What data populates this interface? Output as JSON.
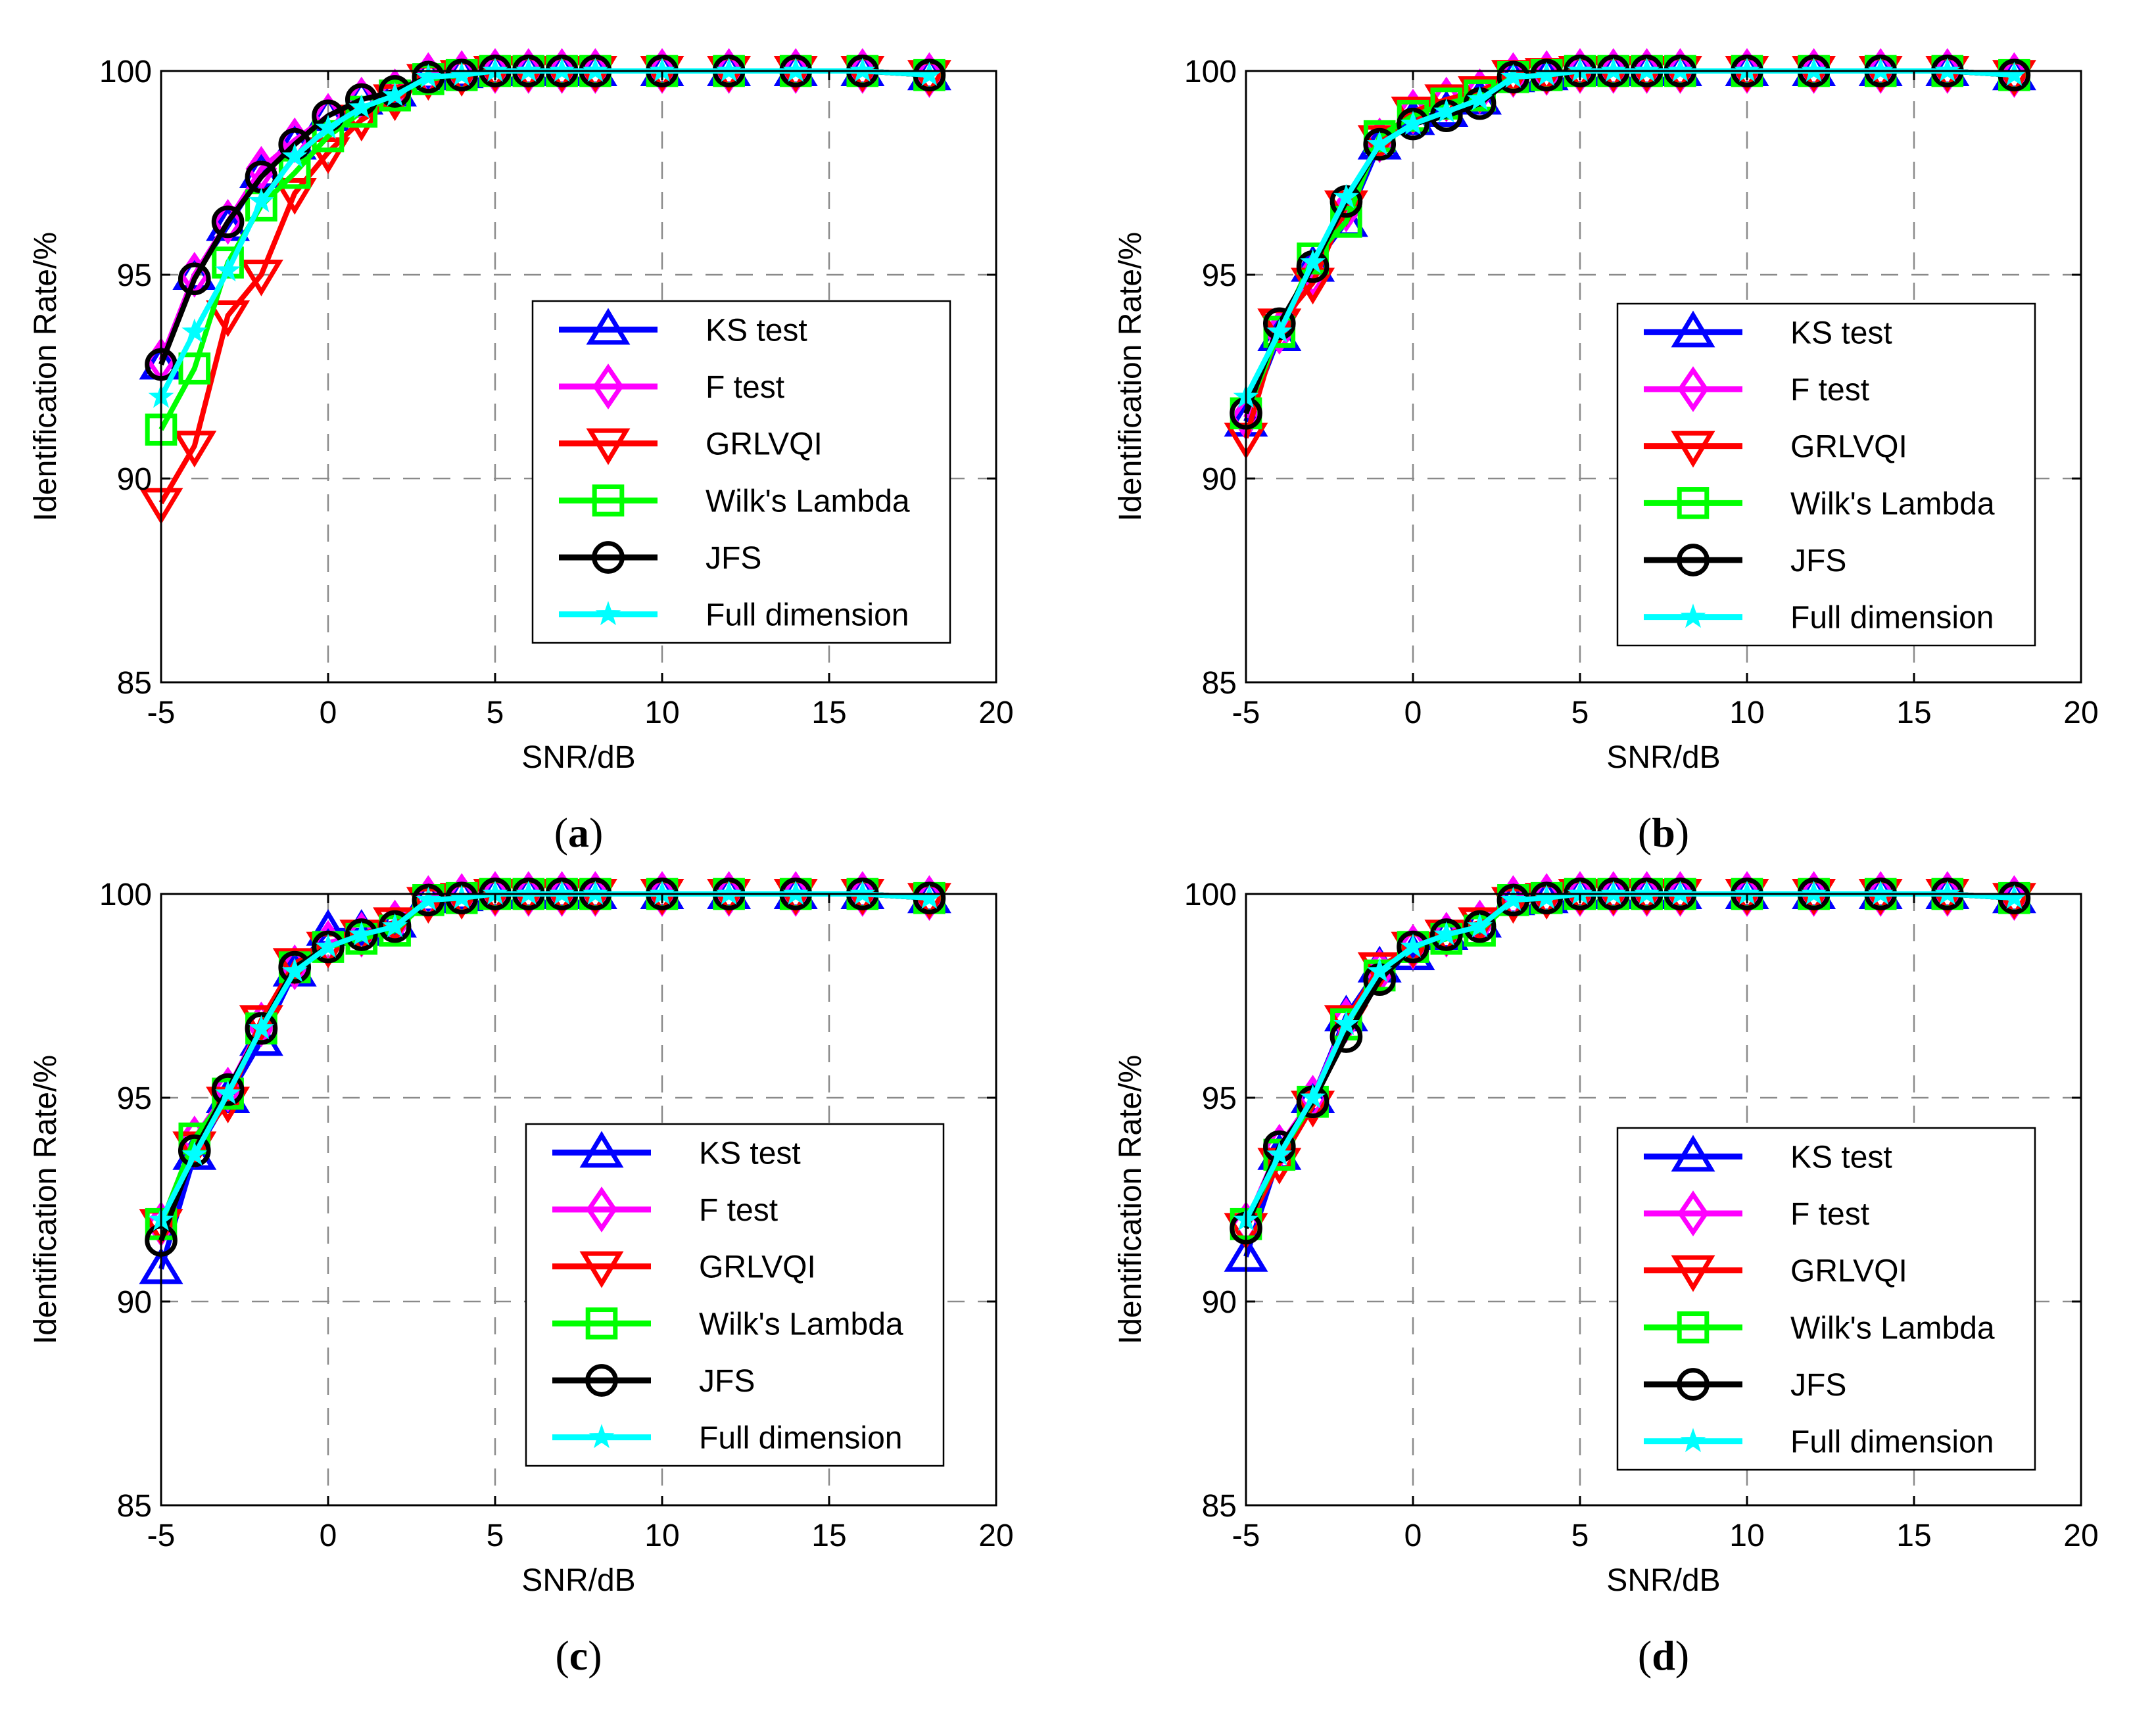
{
  "chart_data": [
    {
      "type": "line",
      "caption": "a",
      "xlabel": "SNR/dB",
      "ylabel": "Identification Rate/%",
      "xlim": [
        -5,
        20
      ],
      "ylim": [
        85,
        100
      ],
      "xticks": [
        "-5",
        "0",
        "5",
        "10",
        "15",
        "20"
      ],
      "yticks": [
        "85",
        "90",
        "95",
        "100"
      ],
      "grid": true,
      "legend_position": "lower-right",
      "x": [
        -5,
        -4,
        -3,
        -2,
        -1,
        0,
        1,
        2,
        3,
        4,
        5,
        6,
        7,
        8,
        10,
        12,
        14,
        16,
        18
      ],
      "series": [
        {
          "name": "KS test",
          "color": "#0000ff",
          "marker": "triangle-up",
          "values": [
            92.8,
            95.0,
            96.2,
            97.5,
            98.2,
            98.9,
            99.3,
            99.5,
            99.9,
            99.95,
            100,
            100,
            100,
            100,
            100,
            100,
            100,
            100,
            99.9
          ]
        },
        {
          "name": "F test",
          "color": "#ff00ff",
          "marker": "diamond",
          "values": [
            92.9,
            95.0,
            96.3,
            97.6,
            98.3,
            98.9,
            99.3,
            99.5,
            99.9,
            99.95,
            100,
            100,
            100,
            100,
            100,
            100,
            100,
            100,
            99.9
          ]
        },
        {
          "name": "GRLVQI",
          "color": "#ff0000",
          "marker": "triangle-down",
          "values": [
            89.4,
            90.8,
            94.0,
            95.0,
            97.0,
            98.0,
            98.8,
            99.3,
            99.8,
            99.9,
            100,
            100,
            100,
            100,
            100,
            100,
            100,
            100,
            99.9
          ]
        },
        {
          "name": "Wilk's Lambda",
          "color": "#00ff00",
          "marker": "square",
          "values": [
            91.2,
            92.7,
            95.3,
            96.7,
            97.5,
            98.4,
            99.0,
            99.4,
            99.8,
            99.9,
            100,
            100,
            100,
            100,
            100,
            100,
            100,
            100,
            99.9
          ]
        },
        {
          "name": "JFS",
          "color": "#000000",
          "marker": "circle",
          "values": [
            92.8,
            94.9,
            96.3,
            97.4,
            98.2,
            98.9,
            99.3,
            99.5,
            99.85,
            99.9,
            100,
            100,
            100,
            100,
            100,
            100,
            100,
            100,
            99.9
          ]
        },
        {
          "name": "Full dimension",
          "color": "#00ffff",
          "marker": "star",
          "values": [
            92.0,
            93.6,
            95.1,
            96.8,
            97.9,
            98.6,
            99.1,
            99.4,
            99.85,
            99.9,
            100,
            100,
            100,
            100,
            100,
            100,
            100,
            100,
            99.9
          ]
        }
      ]
    },
    {
      "type": "line",
      "caption": "b",
      "xlabel": "SNR/dB",
      "ylabel": "Identification Rate/%",
      "xlim": [
        -5,
        20
      ],
      "ylim": [
        85,
        100
      ],
      "xticks": [
        "-5",
        "0",
        "5",
        "10",
        "15",
        "20"
      ],
      "yticks": [
        "85",
        "90",
        "95",
        "100"
      ],
      "grid": true,
      "legend_position": "lower-right",
      "x": [
        -5,
        -4,
        -3,
        -2,
        -1,
        0,
        1,
        2,
        3,
        4,
        5,
        6,
        7,
        8,
        10,
        12,
        14,
        16,
        18
      ],
      "series": [
        {
          "name": "KS test",
          "color": "#0000ff",
          "marker": "triangle-up",
          "values": [
            91.4,
            93.5,
            95.2,
            96.3,
            98.2,
            98.8,
            99.0,
            99.3,
            99.85,
            99.9,
            100,
            100,
            100,
            100,
            100,
            100,
            100,
            100,
            99.9
          ]
        },
        {
          "name": "F test",
          "color": "#ff00ff",
          "marker": "diamond",
          "values": [
            91.5,
            93.6,
            95.0,
            96.6,
            98.3,
            99.0,
            99.3,
            99.5,
            99.9,
            99.95,
            100,
            100,
            100,
            100,
            100,
            100,
            100,
            100,
            99.9
          ]
        },
        {
          "name": "GRLVQI",
          "color": "#ff0000",
          "marker": "triangle-down",
          "values": [
            91.0,
            93.8,
            94.8,
            96.7,
            98.3,
            99.0,
            99.3,
            99.5,
            99.9,
            99.95,
            100,
            100,
            100,
            100,
            100,
            100,
            100,
            100,
            99.9
          ]
        },
        {
          "name": "Wilk's Lambda",
          "color": "#00ff00",
          "marker": "square",
          "values": [
            91.6,
            93.6,
            95.4,
            96.3,
            98.4,
            98.9,
            99.2,
            99.4,
            99.85,
            99.9,
            100,
            100,
            100,
            100,
            100,
            100,
            100,
            100,
            99.9
          ]
        },
        {
          "name": "JFS",
          "color": "#000000",
          "marker": "circle",
          "values": [
            91.6,
            93.8,
            95.2,
            96.8,
            98.2,
            98.7,
            98.9,
            99.2,
            99.85,
            99.9,
            100,
            100,
            100,
            100,
            100,
            100,
            100,
            100,
            99.9
          ]
        },
        {
          "name": "Full dimension",
          "color": "#00ffff",
          "marker": "star",
          "values": [
            92.0,
            93.6,
            95.3,
            96.9,
            98.2,
            98.7,
            99.0,
            99.3,
            99.85,
            99.9,
            100,
            100,
            100,
            100,
            100,
            100,
            100,
            100,
            99.9
          ]
        }
      ]
    },
    {
      "type": "line",
      "caption": "c",
      "xlabel": "SNR/dB",
      "ylabel": "Identification Rate/%",
      "xlim": [
        -5,
        20
      ],
      "ylim": [
        85,
        100
      ],
      "xticks": [
        "-5",
        "0",
        "5",
        "10",
        "15",
        "20"
      ],
      "yticks": [
        "85",
        "90",
        "95",
        "100"
      ],
      "grid": true,
      "legend_position": "lower-right",
      "x": [
        -5,
        -4,
        -3,
        -2,
        -1,
        0,
        1,
        2,
        3,
        4,
        5,
        6,
        7,
        8,
        10,
        12,
        14,
        16,
        18
      ],
      "series": [
        {
          "name": "KS test",
          "color": "#0000ff",
          "marker": "triangle-up",
          "values": [
            90.8,
            93.6,
            95.0,
            96.4,
            98.1,
            99.1,
            99.1,
            99.3,
            99.9,
            99.95,
            100,
            100,
            100,
            100,
            100,
            100,
            100,
            100,
            99.9
          ]
        },
        {
          "name": "F test",
          "color": "#ff00ff",
          "marker": "diamond",
          "values": [
            91.9,
            94.0,
            95.2,
            96.8,
            98.2,
            98.8,
            99.0,
            99.3,
            99.9,
            99.95,
            100,
            100,
            100,
            100,
            100,
            100,
            100,
            100,
            99.9
          ]
        },
        {
          "name": "GRLVQI",
          "color": "#ff0000",
          "marker": "triangle-down",
          "values": [
            91.9,
            93.8,
            94.9,
            96.9,
            98.3,
            98.7,
            99.0,
            99.3,
            99.8,
            99.9,
            100,
            100,
            100,
            100,
            100,
            100,
            100,
            100,
            99.9
          ]
        },
        {
          "name": "Wilk's Lambda",
          "color": "#00ff00",
          "marker": "square",
          "values": [
            91.9,
            94.0,
            95.1,
            96.7,
            98.2,
            98.7,
            98.9,
            99.1,
            99.85,
            99.9,
            100,
            100,
            100,
            100,
            100,
            100,
            100,
            100,
            99.9
          ]
        },
        {
          "name": "JFS",
          "color": "#000000",
          "marker": "circle",
          "values": [
            91.5,
            93.7,
            95.2,
            96.7,
            98.2,
            98.7,
            99.0,
            99.2,
            99.85,
            99.9,
            100,
            100,
            100,
            100,
            100,
            100,
            100,
            100,
            99.9
          ]
        },
        {
          "name": "Full dimension",
          "color": "#00ffff",
          "marker": "star",
          "values": [
            92.0,
            93.6,
            95.1,
            96.7,
            98.1,
            98.7,
            99.0,
            99.2,
            99.85,
            99.9,
            100,
            100,
            100,
            100,
            100,
            100,
            100,
            100,
            99.9
          ]
        }
      ]
    },
    {
      "type": "line",
      "caption": "d",
      "xlabel": "SNR/dB",
      "ylabel": "Identification Rate/%",
      "xlim": [
        -5,
        20
      ],
      "ylim": [
        85,
        100
      ],
      "xticks": [
        "-5",
        "0",
        "5",
        "10",
        "15",
        "20"
      ],
      "yticks": [
        "85",
        "90",
        "95",
        "100"
      ],
      "grid": true,
      "legend_position": "lower-right",
      "x": [
        -5,
        -4,
        -3,
        -2,
        -1,
        0,
        1,
        2,
        3,
        4,
        5,
        6,
        7,
        8,
        10,
        12,
        14,
        16,
        18
      ],
      "series": [
        {
          "name": "KS test",
          "color": "#0000ff",
          "marker": "triangle-up",
          "values": [
            91.1,
            93.6,
            95.0,
            97.0,
            98.2,
            98.5,
            99.0,
            99.3,
            99.85,
            99.9,
            100,
            100,
            100,
            100,
            100,
            100,
            100,
            100,
            99.9
          ]
        },
        {
          "name": "F test",
          "color": "#ff00ff",
          "marker": "diamond",
          "values": [
            91.9,
            93.8,
            95.0,
            96.9,
            98.1,
            98.7,
            99.0,
            99.3,
            99.9,
            99.95,
            100,
            100,
            100,
            100,
            100,
            100,
            100,
            100,
            99.9
          ]
        },
        {
          "name": "GRLVQI",
          "color": "#ff0000",
          "marker": "triangle-down",
          "values": [
            91.8,
            93.4,
            94.8,
            96.9,
            98.2,
            98.7,
            99.0,
            99.3,
            99.8,
            99.9,
            100,
            100,
            100,
            100,
            100,
            100,
            100,
            100,
            99.9
          ]
        },
        {
          "name": "Wilk's Lambda",
          "color": "#00ff00",
          "marker": "square",
          "values": [
            91.9,
            93.6,
            94.9,
            96.8,
            98.0,
            98.7,
            98.9,
            99.1,
            99.85,
            99.9,
            100,
            100,
            100,
            100,
            100,
            100,
            100,
            100,
            99.9
          ]
        },
        {
          "name": "JFS",
          "color": "#000000",
          "marker": "circle",
          "values": [
            91.8,
            93.8,
            94.9,
            96.5,
            97.9,
            98.7,
            99.0,
            99.2,
            99.85,
            99.9,
            100,
            100,
            100,
            100,
            100,
            100,
            100,
            100,
            99.9
          ]
        },
        {
          "name": "Full dimension",
          "color": "#00ffff",
          "marker": "star",
          "values": [
            92.0,
            93.6,
            95.0,
            96.8,
            98.1,
            98.7,
            99.0,
            99.2,
            99.85,
            99.9,
            100,
            100,
            100,
            100,
            100,
            100,
            100,
            100,
            99.9
          ]
        }
      ]
    }
  ]
}
